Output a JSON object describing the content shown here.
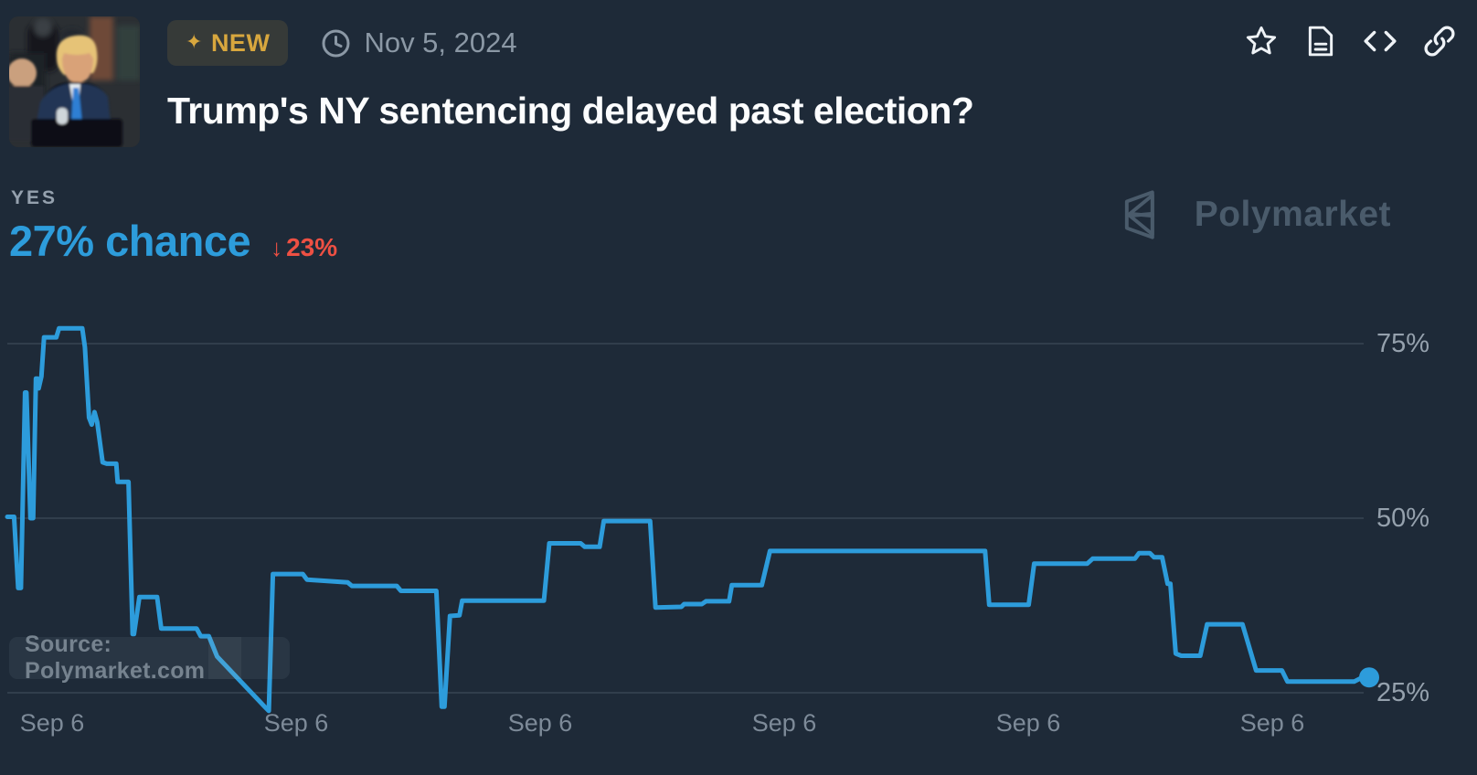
{
  "header": {
    "badge_icon": "✦",
    "badge": "NEW",
    "date": "Nov 5, 2024",
    "title": "Trump's NY sentencing delayed past election?"
  },
  "outcome": {
    "label": "YES",
    "chance": "27% chance",
    "direction": "↓",
    "change": "23%"
  },
  "brand": {
    "name": "Polymarket"
  },
  "chart": {
    "source": "Source: Polymarket.com"
  },
  "colors": {
    "background": "#1e2a38",
    "accent_blue": "#2d9cdb",
    "delta_red": "#ee5043",
    "badge_gold": "#d8a73e",
    "brand_gray": "#4a5b6b"
  },
  "chart_data": {
    "type": "line",
    "series_name": "YES price",
    "unit": "%",
    "title": "Trump's NY sentencing delayed past election? — YES chance over time",
    "ylim": [
      20,
      82
    ],
    "grid": true,
    "legend_position": "none",
    "y_ticks": [
      {
        "value": 75,
        "label": "75%"
      },
      {
        "value": 50,
        "label": "50%"
      },
      {
        "value": 25,
        "label": "25%"
      }
    ],
    "x_ticks": [
      "Sep 6",
      "Sep 6",
      "Sep 6",
      "Sep 6",
      "Sep 6",
      "Sep 6"
    ],
    "end_value": 27,
    "line_color": "#2d9cdb",
    "points": [
      [
        0.0,
        50.2
      ],
      [
        0.005,
        50.2
      ],
      [
        0.008,
        40.0
      ],
      [
        0.01,
        40.0
      ],
      [
        0.013,
        68.0
      ],
      [
        0.014,
        68.0
      ],
      [
        0.017,
        50.0
      ],
      [
        0.019,
        50.0
      ],
      [
        0.021,
        70.0
      ],
      [
        0.022,
        70.0
      ],
      [
        0.023,
        68.6
      ],
      [
        0.025,
        70.3
      ],
      [
        0.027,
        75.9
      ],
      [
        0.036,
        75.9
      ],
      [
        0.038,
        77.2
      ],
      [
        0.055,
        77.2
      ],
      [
        0.057,
        74.5
      ],
      [
        0.06,
        64.4
      ],
      [
        0.062,
        63.4
      ],
      [
        0.064,
        65.2
      ],
      [
        0.066,
        63.8
      ],
      [
        0.07,
        58.0
      ],
      [
        0.073,
        57.8
      ],
      [
        0.08,
        57.8
      ],
      [
        0.081,
        55.2
      ],
      [
        0.089,
        55.2
      ],
      [
        0.092,
        33.4
      ],
      [
        0.093,
        33.4
      ],
      [
        0.097,
        38.7
      ],
      [
        0.11,
        38.7
      ],
      [
        0.113,
        34.2
      ],
      [
        0.139,
        34.2
      ],
      [
        0.142,
        33.1
      ],
      [
        0.148,
        33.1
      ],
      [
        0.154,
        30.2
      ],
      [
        0.189,
        23.0
      ],
      [
        0.192,
        22.4
      ],
      [
        0.195,
        42.0
      ],
      [
        0.217,
        42.0
      ],
      [
        0.22,
        41.2
      ],
      [
        0.25,
        40.8
      ],
      [
        0.253,
        40.3
      ],
      [
        0.286,
        40.3
      ],
      [
        0.289,
        39.6
      ],
      [
        0.315,
        39.6
      ],
      [
        0.319,
        23.0
      ],
      [
        0.321,
        23.0
      ],
      [
        0.325,
        36.0
      ],
      [
        0.332,
        36.1
      ],
      [
        0.334,
        38.2
      ],
      [
        0.394,
        38.2
      ],
      [
        0.398,
        46.4
      ],
      [
        0.421,
        46.4
      ],
      [
        0.424,
        45.9
      ],
      [
        0.435,
        45.9
      ],
      [
        0.438,
        49.6
      ],
      [
        0.472,
        49.6
      ],
      [
        0.476,
        37.2
      ],
      [
        0.495,
        37.3
      ],
      [
        0.497,
        37.7
      ],
      [
        0.51,
        37.7
      ],
      [
        0.513,
        38.1
      ],
      [
        0.53,
        38.1
      ],
      [
        0.532,
        40.4
      ],
      [
        0.554,
        40.4
      ],
      [
        0.56,
        45.3
      ],
      [
        0.718,
        45.3
      ],
      [
        0.721,
        37.6
      ],
      [
        0.75,
        37.6
      ],
      [
        0.754,
        43.5
      ],
      [
        0.793,
        43.5
      ],
      [
        0.797,
        44.2
      ],
      [
        0.828,
        44.2
      ],
      [
        0.831,
        45.0
      ],
      [
        0.839,
        45.0
      ],
      [
        0.842,
        44.4
      ],
      [
        0.848,
        44.4
      ],
      [
        0.852,
        40.6
      ],
      [
        0.854,
        40.6
      ],
      [
        0.858,
        30.6
      ],
      [
        0.862,
        30.3
      ],
      [
        0.876,
        30.3
      ],
      [
        0.881,
        34.8
      ],
      [
        0.907,
        34.8
      ],
      [
        0.917,
        28.2
      ],
      [
        0.936,
        28.2
      ],
      [
        0.94,
        26.6
      ],
      [
        0.989,
        26.6
      ],
      [
        0.995,
        27.2
      ],
      [
        1.0,
        27.2
      ]
    ]
  },
  "icons": {
    "star": "favorite",
    "document": "details",
    "code": "embed",
    "link": "copy-link",
    "clock": "date"
  }
}
